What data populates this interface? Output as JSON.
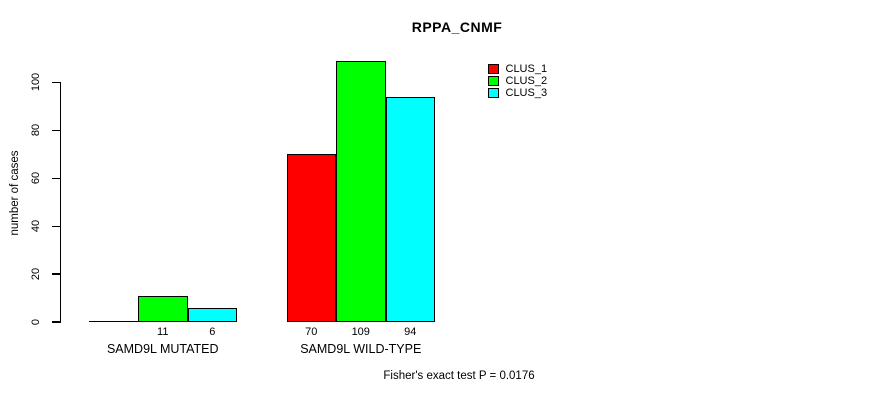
{
  "chart_data": {
    "type": "bar",
    "title": "RPPA_CNMF",
    "xlabel": "",
    "ylabel": "number of cases",
    "categories": [
      "SAMD9L MUTATED",
      "SAMD9L WILD-TYPE"
    ],
    "series": [
      {
        "name": "CLUS_1",
        "color": "#ff0000",
        "values": [
          0,
          70
        ]
      },
      {
        "name": "CLUS_2",
        "color": "#00ff00",
        "values": [
          11,
          109
        ]
      },
      {
        "name": "CLUS_3",
        "color": "#00ffff",
        "values": [
          6,
          94
        ]
      }
    ],
    "bar_value_labels": [
      [
        "",
        "11",
        "6"
      ],
      [
        "70",
        "109",
        "94"
      ]
    ],
    "y_ticks": [
      0,
      20,
      40,
      60,
      80,
      100
    ],
    "ylim": [
      0,
      113
    ],
    "grid": false,
    "legend_position": "top-right",
    "annotation": "Fisher's exact test P = 0.0176"
  },
  "colors": {
    "background": "#ffffff",
    "axis": "#000000",
    "text": "#000000"
  }
}
